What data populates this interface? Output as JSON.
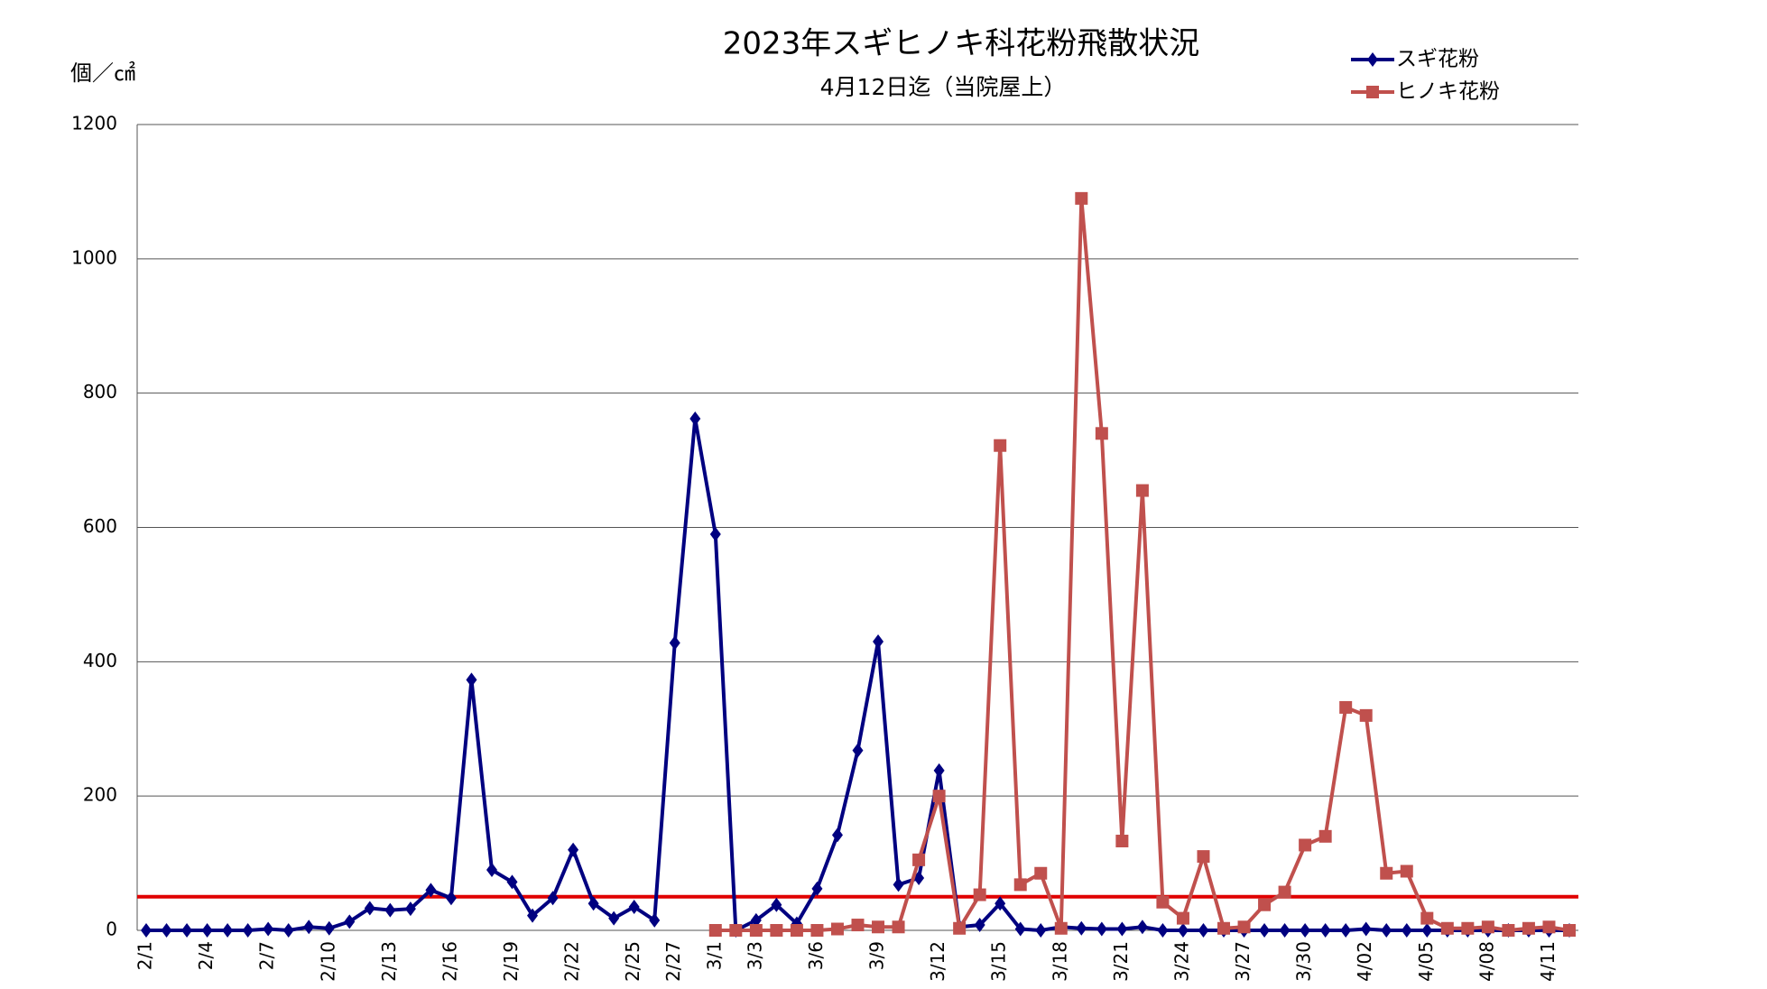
{
  "chart_data": {
    "type": "line",
    "title": "2023年スギヒノキ科花粉飛散状況",
    "subtitle": "4月12日迄（当院屋上）",
    "y_label": "個／㎠",
    "categories": [
      "2/1",
      null,
      null,
      "2/4",
      null,
      null,
      "2/7",
      null,
      null,
      "2/10",
      null,
      null,
      "2/13",
      null,
      null,
      "2/16",
      null,
      null,
      "2/19",
      null,
      null,
      "2/22",
      null,
      null,
      "2/25",
      null,
      "2/27",
      null,
      "3/1",
      null,
      "3/3",
      null,
      null,
      "3/6",
      null,
      null,
      "3/9",
      null,
      null,
      "3/12",
      null,
      null,
      "3/15",
      null,
      null,
      "3/18",
      null,
      null,
      "3/21",
      null,
      null,
      "3/24",
      null,
      null,
      "3/27",
      null,
      null,
      "3/30",
      null,
      null,
      "4/02",
      null,
      null,
      "4/05",
      null,
      null,
      "4/08",
      null,
      null,
      "4/11",
      null
    ],
    "series": [
      {
        "name": "スギ花粉",
        "color": "#000080",
        "marker": "diamond",
        "values": [
          0,
          0,
          0,
          0,
          0,
          0,
          2,
          0,
          5,
          3,
          13,
          33,
          30,
          32,
          60,
          48,
          373,
          90,
          72,
          22,
          48,
          120,
          40,
          18,
          35,
          15,
          428,
          762,
          590,
          0,
          15,
          38,
          10,
          62,
          142,
          268,
          430,
          68,
          78,
          238,
          5,
          8,
          40,
          2,
          0,
          5,
          3,
          2,
          2,
          5,
          0,
          0,
          0,
          0,
          0,
          0,
          0,
          0,
          0,
          0,
          2,
          0,
          0,
          0,
          0,
          0,
          0,
          0,
          0,
          0,
          0
        ]
      },
      {
        "name": "ヒノキ花粉",
        "color": "#c0504d",
        "marker": "square",
        "values": [
          null,
          null,
          null,
          null,
          null,
          null,
          null,
          null,
          null,
          null,
          null,
          null,
          null,
          null,
          null,
          null,
          null,
          null,
          null,
          null,
          null,
          null,
          null,
          null,
          null,
          null,
          null,
          null,
          0,
          0,
          0,
          0,
          0,
          0,
          2,
          8,
          5,
          5,
          105,
          200,
          3,
          53,
          722,
          68,
          85,
          3,
          1090,
          740,
          133,
          655,
          42,
          18,
          110,
          3,
          5,
          38,
          57,
          127,
          140,
          332,
          320,
          85,
          88,
          18,
          3,
          3,
          5,
          0,
          3,
          5,
          0
        ]
      }
    ],
    "reference_line": {
      "value": 50,
      "color": "#e00000"
    },
    "ylim": [
      0,
      1200
    ],
    "yticks": [
      0,
      200,
      400,
      600,
      800,
      1000,
      1200
    ],
    "grid": true
  }
}
